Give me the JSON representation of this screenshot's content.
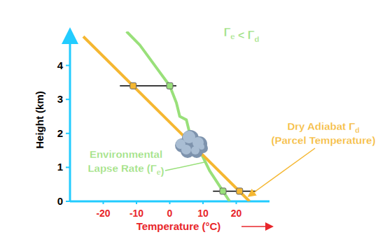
{
  "chart_data": {
    "type": "line",
    "xlabel": "Temperature (°C)",
    "ylabel": "Height (km)",
    "xlim": [
      -30,
      30
    ],
    "xticks": [
      -20,
      -10,
      0,
      10,
      20
    ],
    "ylim": [
      0,
      5
    ],
    "yticks": [
      0,
      1,
      2,
      3,
      4
    ],
    "series": [
      {
        "type": "line",
        "color": "#99e07a",
        "x": [
          18,
          16,
          12,
          9,
          6,
          5,
          3,
          2,
          0,
          -3,
          -6,
          -9,
          -13
        ],
        "values": [
          0,
          0.3,
          0.9,
          1.5,
          2.0,
          2.4,
          2.5,
          2.9,
          3.4,
          3.8,
          4.2,
          4.6,
          5.0
        ]
      },
      {
        "type": "line",
        "color": "#f5b731",
        "x": [
          24,
          -26
        ],
        "values": [
          0,
          4.85
        ]
      },
      {
        "type": "line",
        "color": "#000000",
        "x": [
          -15,
          2
        ],
        "values": [
          3.4,
          3.4
        ]
      },
      {
        "type": "line",
        "color": "#000000",
        "x": [
          13,
          26
        ],
        "values": [
          0.3,
          0.3
        ]
      },
      {
        "type": "scatter",
        "marker": "square",
        "color": "#99e07a",
        "x": [
          0,
          16
        ],
        "values": [
          3.4,
          0.3
        ]
      },
      {
        "type": "scatter",
        "marker": "square",
        "color": "#f5b731",
        "x": [
          -11,
          21
        ],
        "values": [
          3.4,
          0.3
        ]
      }
    ],
    "annotations": [
      {
        "text": [
          "Γe < Γd"
        ],
        "color": "#99e07a"
      },
      {
        "text": [
          "Dry Adiabat Γd",
          "(Parcel Temperature)"
        ],
        "color": "#f5b731"
      },
      {
        "text": [
          "Environmental",
          "Lapse Rate (Γe)"
        ],
        "color": "#99e07a"
      }
    ]
  }
}
